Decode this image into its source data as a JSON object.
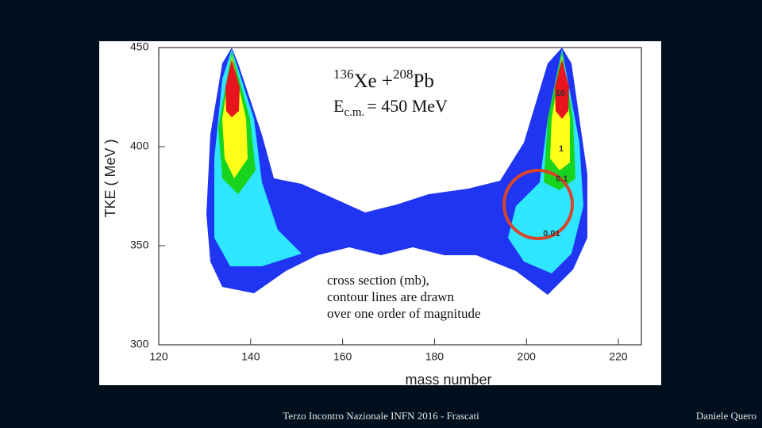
{
  "chart_data": {
    "type": "contour",
    "x_label": "mass  number",
    "y_label": "TKE ( MeV )",
    "xlim": [
      120,
      225
    ],
    "ylim": [
      300,
      450
    ],
    "xticks": [
      120,
      140,
      160,
      180,
      200,
      220
    ],
    "yticks": [
      300,
      350,
      400,
      450
    ],
    "reaction": {
      "a_mass": "136",
      "a": "Xe +",
      "b_mass": "208",
      "b": "Pb"
    },
    "energy": {
      "symbol": "E",
      "subscript": "c.m.",
      "value": "= 450 MeV"
    },
    "note": [
      "cross section (mb),",
      "contour lines are drawn",
      "over one order of magnitude"
    ],
    "outer_color": "#1f35f2",
    "levels": [
      0.01,
      0.1,
      1,
      10
    ],
    "level_colors": [
      "#2ee6ff",
      "#19d41e",
      "#ffff1a",
      "#e8141e"
    ]
  },
  "footer": {
    "event": "Terzo Incontro Nazionale INFN 2016 - Frascati",
    "author": "Daniele Quero"
  }
}
